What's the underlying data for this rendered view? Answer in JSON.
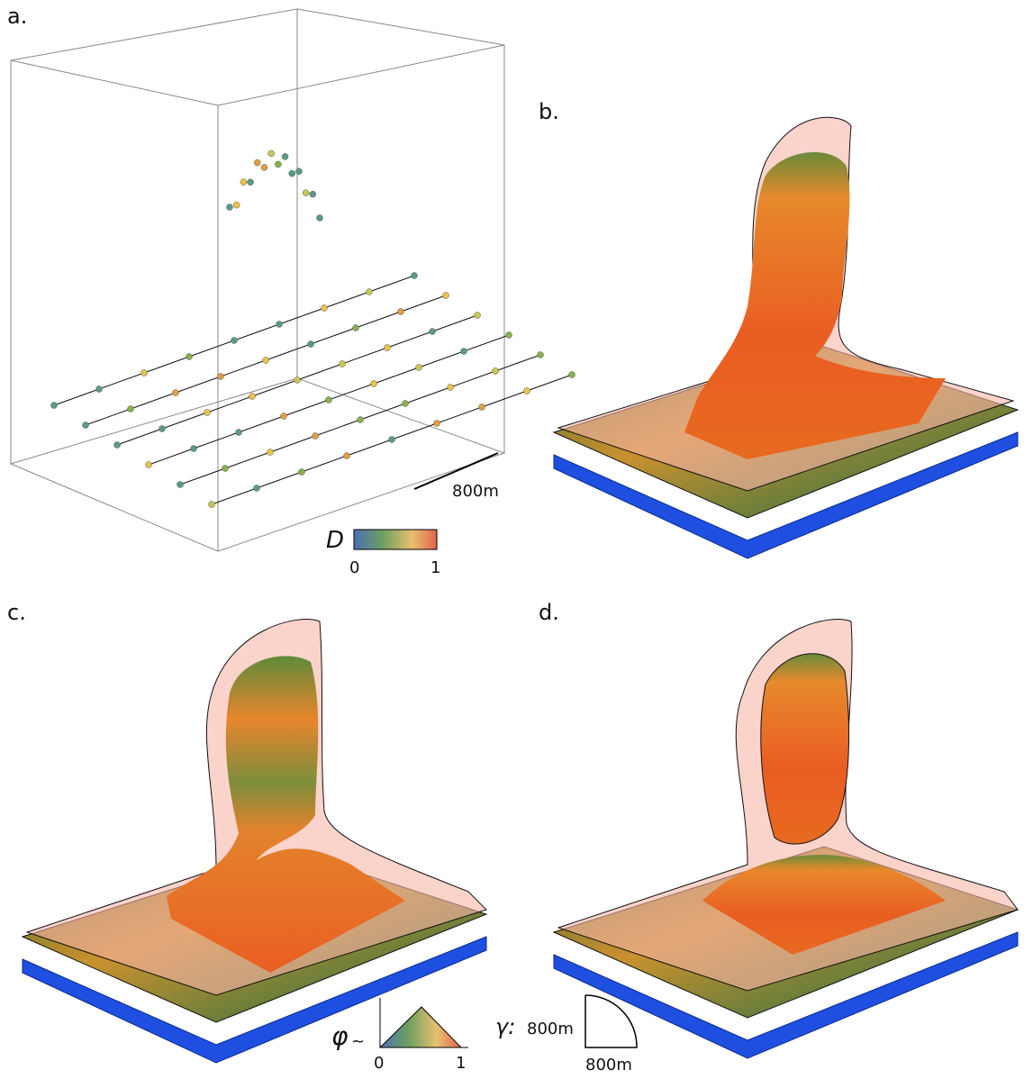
{
  "panels": [
    {
      "label": "a."
    },
    {
      "label": "b."
    },
    {
      "label": "c."
    },
    {
      "label": "d."
    }
  ],
  "panel_a": {
    "scale_bar": "800m",
    "colorbar": {
      "title": "D",
      "ticks": [
        0,
        1
      ]
    }
  },
  "legend": {
    "phi": {
      "symbol": "φ",
      "sub": "~",
      "ticks": [
        0,
        1
      ]
    },
    "gamma": {
      "symbol": "γ:",
      "vertical": "800m",
      "horizontal": "800m"
    }
  }
}
